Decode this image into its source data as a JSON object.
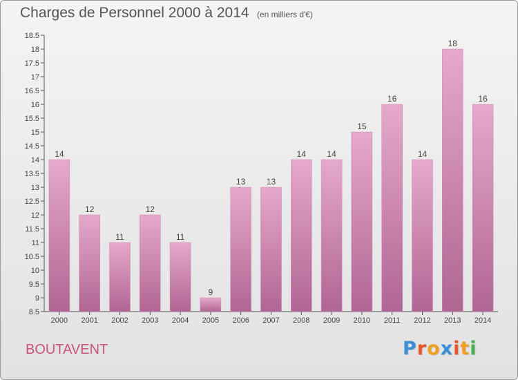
{
  "header": {
    "title": "Charges de Personnel 2000 à 2014",
    "subtitle": "(en milliers d'€)"
  },
  "footer": {
    "commune": "BOUTAVENT",
    "logo_text": "Proxiti"
  },
  "colors": {
    "bar_top": "#e6a8cc",
    "bar_bottom": "#b06693",
    "axis": "#555555",
    "commune_text": "#cc5577",
    "logo_letters": [
      "#3a8fd6",
      "#e8552a",
      "#f0a020",
      "#3a8fd6",
      "#e8552a",
      "#f0a020",
      "#4caf50"
    ]
  },
  "chart_data": {
    "type": "bar",
    "categories": [
      "2000",
      "2001",
      "2002",
      "2003",
      "2004",
      "2005",
      "2006",
      "2007",
      "2008",
      "2009",
      "2010",
      "2011",
      "2012",
      "2013",
      "2014"
    ],
    "values": [
      14,
      12,
      11,
      12,
      11,
      9,
      13,
      13,
      14,
      14,
      15,
      16,
      14,
      18,
      16
    ],
    "title": "Charges de Personnel 2000 à 2014",
    "subtitle": "(en milliers d'€)",
    "xlabel": "",
    "ylabel": "",
    "ylim": [
      8.5,
      18.5
    ],
    "yticks": [
      8.5,
      9,
      9.5,
      10,
      10.5,
      11,
      11.5,
      12,
      12.5,
      13,
      13.5,
      14,
      14.5,
      15,
      15.5,
      16,
      16.5,
      17,
      17.5,
      18,
      18.5
    ],
    "grid": false,
    "data_labels": true,
    "legend": "none"
  }
}
